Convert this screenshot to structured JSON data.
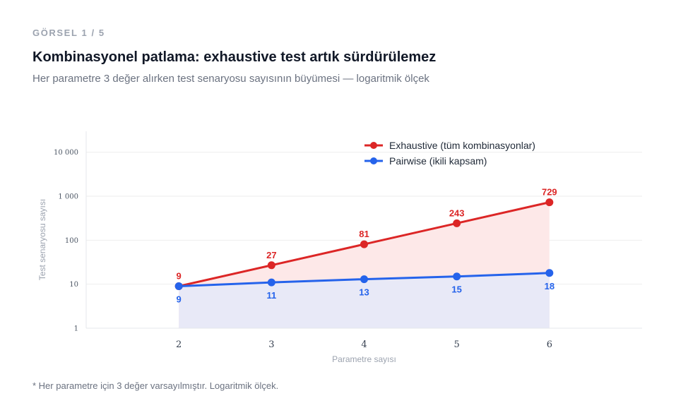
{
  "header": {
    "eyebrow": "GÖRSEL 1 / 5",
    "title": "Kombinasyonel patlama: exhaustive test artık sürdürülemez",
    "subtitle": "Her parametre 3 değer alırken test senaryosu sayısının büyümesi — logaritmik ölçek"
  },
  "footnote": "* Her parametre için 3 değer varsayılmıştır. Logaritmik ölçek.",
  "colors": {
    "exhaustive": "#dc2626",
    "exhaustive_fill": "#fde8e8",
    "pairwise": "#2563eb",
    "pairwise_fill": "#e8e9f7",
    "grid": "#eeeeee"
  },
  "chart_data": {
    "type": "line",
    "xlabel": "Parametre sayısı",
    "ylabel": "Test senaryosu sayısı",
    "x": [
      2,
      3,
      4,
      5,
      6
    ],
    "x_ticks": [
      "2",
      "3",
      "4",
      "5",
      "6"
    ],
    "xlim": [
      1,
      7
    ],
    "y_scale": "log",
    "ylim": [
      1,
      30000
    ],
    "y_ticks": [
      1,
      10,
      100,
      1000,
      10000
    ],
    "y_tick_labels": [
      "1",
      "10",
      "100",
      "1 000",
      "10 000"
    ],
    "grid": true,
    "legend_position": "top-right",
    "series": [
      {
        "name": "Exhaustive (tüm kombinasyonlar)",
        "values": [
          9,
          27,
          81,
          243,
          729
        ],
        "labels": [
          "9",
          "27",
          "81",
          "243",
          "729"
        ],
        "label_position": "above",
        "area_fill": true
      },
      {
        "name": "Pairwise (ikili kapsam)",
        "values": [
          9,
          11,
          13,
          15,
          18
        ],
        "labels": [
          "9",
          "11",
          "13",
          "15",
          "18"
        ],
        "label_position": "below",
        "area_fill": true
      }
    ]
  }
}
